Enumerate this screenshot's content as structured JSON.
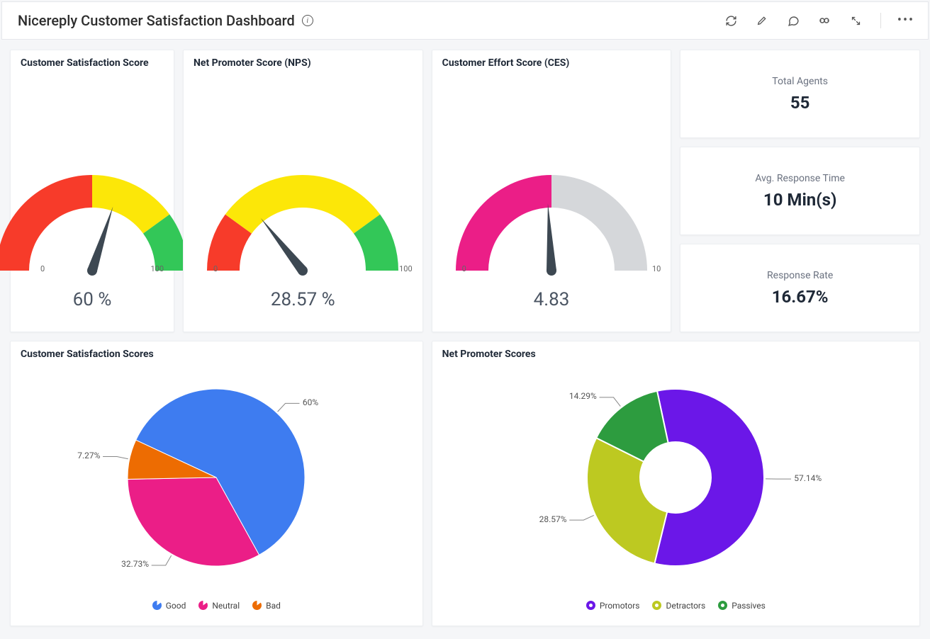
{
  "header": {
    "title": "Nicereply Customer Satisfaction Dashboard"
  },
  "kpis": {
    "agents_label": "Total Agents",
    "agents_value": "55",
    "response_time_label": "Avg. Response Time",
    "response_time_value": "10 Min(s)",
    "response_rate_label": "Response Rate",
    "response_rate_value": "16.67%"
  },
  "gauges": {
    "csat": {
      "title": "Customer Satisfaction Score",
      "type": "gauge",
      "min": 0,
      "max": 100,
      "min_label": "0",
      "max_label": "100",
      "value": 60,
      "value_label": "60 %",
      "segments": [
        {
          "from": 0,
          "to": 50,
          "color": "#f73b2a"
        },
        {
          "from": 50,
          "to": 80,
          "color": "#fce708"
        },
        {
          "from": 80,
          "to": 100,
          "color": "#33c758"
        }
      ],
      "needle_color": "#3d4852",
      "track_width": 46
    },
    "nps": {
      "title": "Net Promoter Score (NPS)",
      "type": "gauge",
      "min": 0,
      "max": 100,
      "min_label": "0",
      "max_label": "100",
      "value": 28.57,
      "value_label": "28.57 %",
      "segments": [
        {
          "from": 0,
          "to": 20,
          "color": "#f73b2a"
        },
        {
          "from": 20,
          "to": 80,
          "color": "#fce708"
        },
        {
          "from": 80,
          "to": 100,
          "color": "#33c758"
        }
      ],
      "needle_color": "#3d4852",
      "track_width": 46
    },
    "ces": {
      "title": "Customer Effort Score (CES)",
      "type": "gauge",
      "min": 0,
      "max": 10,
      "min_label": "0",
      "max_label": "10",
      "value": 4.83,
      "value_label": "4.83",
      "segments": [
        {
          "from": 0,
          "to": 5,
          "color": "#eb1e87"
        },
        {
          "from": 5,
          "to": 10,
          "color": "#d5d7da"
        }
      ],
      "needle_color": "#3d4852",
      "track_width": 46
    }
  },
  "pies": {
    "csat_breakdown": {
      "title": "Customer Satisfaction Scores",
      "type": "pie",
      "inner_radius": 0,
      "outer_radius": 125,
      "start_angle": -65,
      "slices": [
        {
          "label": "Good",
          "value": 60.0,
          "display": "60%",
          "color": "#3e7cf0"
        },
        {
          "label": "Neutral",
          "value": 32.73,
          "display": "32.73%",
          "color": "#eb1e87"
        },
        {
          "label": "Bad",
          "value": 7.27,
          "display": "7.27%",
          "color": "#ed6c02"
        }
      ],
      "legend_style": "pie-slice",
      "label_line_color": "#888888"
    },
    "nps_breakdown": {
      "title": "Net Promoter Scores",
      "type": "donut",
      "inner_radius": 50,
      "outer_radius": 125,
      "start_angle": -12,
      "slices": [
        {
          "label": "Promotors",
          "value": 57.14,
          "display": "57.14%",
          "color": "#6b17e8"
        },
        {
          "label": "Detractors",
          "value": 28.57,
          "display": "28.57%",
          "color": "#bdc921"
        },
        {
          "label": "Passives",
          "value": 14.29,
          "display": "14.29%",
          "color": "#2d9c3f"
        }
      ],
      "legend_style": "donut-ring",
      "label_line_color": "#888888"
    }
  },
  "colors": {
    "card_bg": "#ffffff",
    "page_bg": "#f5f6f8",
    "text_primary": "#1f2937",
    "text_secondary": "#6b7280"
  }
}
